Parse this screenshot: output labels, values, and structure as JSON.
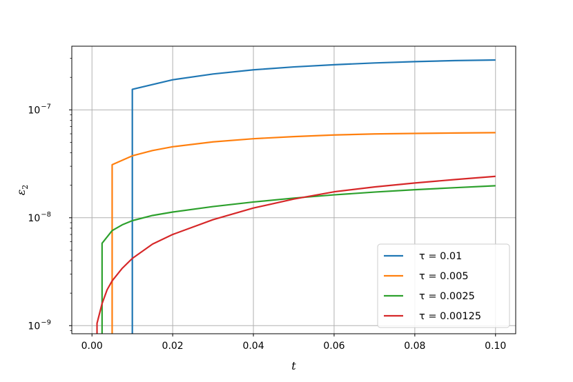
{
  "chart_data": {
    "type": "line",
    "title": "",
    "xlabel": "t",
    "ylabel": "ε",
    "ylabel_sub": "2",
    "xlim": [
      -0.005,
      0.105
    ],
    "ylog_lim": [
      -9.075,
      -6.41
    ],
    "yscale": "log",
    "grid": true,
    "legend_position": "lower right",
    "x_ticks": [
      {
        "value": 0.0,
        "label": "0.00"
      },
      {
        "value": 0.02,
        "label": "0.02"
      },
      {
        "value": 0.04,
        "label": "0.04"
      },
      {
        "value": 0.06,
        "label": "0.06"
      },
      {
        "value": 0.08,
        "label": "0.08"
      },
      {
        "value": 0.1,
        "label": "0.10"
      }
    ],
    "y_ticks": [
      {
        "value": 1e-09,
        "base": "10",
        "exp": "−9"
      },
      {
        "value": 1e-08,
        "base": "10",
        "exp": "−8"
      },
      {
        "value": 1e-07,
        "base": "10",
        "exp": "−7"
      }
    ],
    "series": [
      {
        "name": "τ = 0.01",
        "color": "#1f77b4",
        "x": [
          0.01,
          0.01,
          0.02,
          0.03,
          0.04,
          0.05,
          0.06,
          0.07,
          0.08,
          0.09,
          0.1
        ],
        "y": [
          8e-10,
          1.55e-07,
          1.9e-07,
          2.15e-07,
          2.35e-07,
          2.5e-07,
          2.62e-07,
          2.72e-07,
          2.8e-07,
          2.86e-07,
          2.9e-07
        ]
      },
      {
        "name": "τ = 0.005",
        "color": "#ff7f0e",
        "x": [
          0.005,
          0.005,
          0.01,
          0.015,
          0.02,
          0.03,
          0.04,
          0.05,
          0.06,
          0.07,
          0.08,
          0.09,
          0.1
        ],
        "y": [
          8e-10,
          3.1e-08,
          3.75e-08,
          4.2e-08,
          4.55e-08,
          5.05e-08,
          5.4e-08,
          5.65e-08,
          5.85e-08,
          5.98e-08,
          6.05e-08,
          6.1e-08,
          6.15e-08
        ]
      },
      {
        "name": "τ = 0.0025",
        "color": "#2ca02c",
        "x": [
          0.0025,
          0.0025,
          0.005,
          0.0075,
          0.01,
          0.015,
          0.02,
          0.03,
          0.04,
          0.05,
          0.06,
          0.07,
          0.08,
          0.09,
          0.1
        ],
        "y": [
          8e-10,
          5.8e-09,
          7.6e-09,
          8.6e-09,
          9.4e-09,
          1.05e-08,
          1.13e-08,
          1.27e-08,
          1.4e-08,
          1.52e-08,
          1.63e-08,
          1.73e-08,
          1.82e-08,
          1.9e-08,
          1.98e-08
        ]
      },
      {
        "name": "τ = 0.00125",
        "color": "#d62728",
        "x": [
          0.00125,
          0.00125,
          0.0025,
          0.00375,
          0.005,
          0.0075,
          0.01,
          0.015,
          0.02,
          0.03,
          0.04,
          0.05,
          0.06,
          0.07,
          0.08,
          0.09,
          0.1
        ],
        "y": [
          8e-10,
          1.05e-09,
          1.6e-09,
          2.15e-09,
          2.6e-09,
          3.4e-09,
          4.2e-09,
          5.7e-09,
          7e-09,
          9.6e-09,
          1.23e-08,
          1.49e-08,
          1.74e-08,
          1.93e-08,
          2.1e-08,
          2.26e-08,
          2.42e-08
        ]
      }
    ]
  }
}
